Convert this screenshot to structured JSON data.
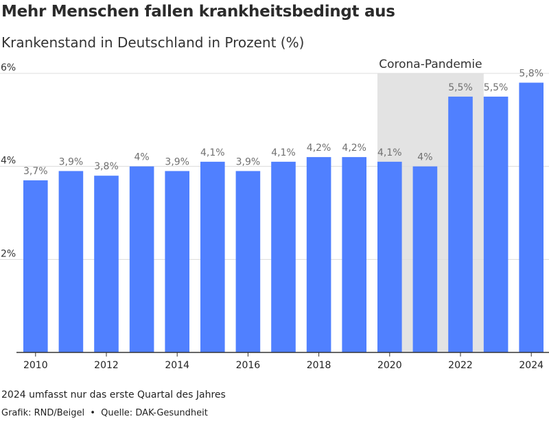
{
  "chart_data": {
    "type": "bar",
    "title": "Mehr Menschen fallen krankheitsbedingt aus",
    "subtitle": "Krankenstand in Deutschland in Prozent (%)",
    "categories": [
      "2010",
      "2011",
      "2012",
      "2013",
      "2014",
      "2015",
      "2016",
      "2017",
      "2018",
      "2019",
      "2020",
      "2021",
      "2022",
      "2023",
      "2024"
    ],
    "values": [
      3.7,
      3.9,
      3.8,
      4.0,
      3.9,
      4.1,
      3.9,
      4.1,
      4.2,
      4.2,
      4.1,
      4.0,
      5.5,
      5.5,
      5.8
    ],
    "value_labels": [
      "3,7%",
      "3,9%",
      "3,8%",
      "4%",
      "3,9%",
      "4,1%",
      "3,9%",
      "4,1%",
      "4,2%",
      "4,2%",
      "4,1%",
      "4%",
      "5,5%",
      "5,5%",
      "5,8%"
    ],
    "x_tick_labels": [
      "2010",
      "",
      "2012",
      "",
      "2014",
      "",
      "2016",
      "",
      "2018",
      "",
      "2020",
      "",
      "2022",
      "",
      "2024"
    ],
    "y_ticks": [
      {
        "value": 2,
        "label": "2%"
      },
      {
        "value": 4,
        "label": "4%"
      },
      {
        "value": 6,
        "label": "6%"
      }
    ],
    "ylim": [
      0,
      6
    ],
    "grid": true,
    "bar_color": "#5080ff",
    "highlight": {
      "label": "Corona-Pandemie",
      "from": "2020",
      "to": "2022",
      "color": "#e3e3e3"
    }
  },
  "footnote": "2024 umfasst nur das erste Quartal des Jahres",
  "credits": {
    "grafik": "Grafik: RND/Beigel",
    "separator": "•",
    "quelle": "Quelle: DAK-Gesundheit"
  }
}
